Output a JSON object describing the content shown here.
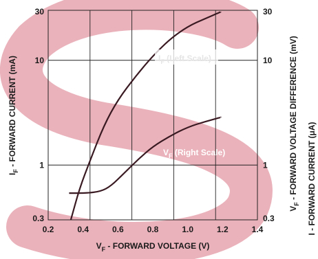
{
  "watermark": {
    "color": "#e8aab4",
    "glyph": "S"
  },
  "chart_data": {
    "type": "line",
    "title": "",
    "x_axis": {
      "label_main": "V",
      "label_sub": "F",
      "label_rest": " - FORWARD VOLTAGE (V)",
      "min": 0.2,
      "max": 1.4,
      "ticks": [
        "0.2",
        "0.4",
        "0.6",
        "0.8",
        "1.0",
        "1.2",
        "1.4"
      ],
      "grid": true
    },
    "y_left": {
      "label_main": "I",
      "label_sub": "F",
      "label_rest": " - FORWARD CURRENT (mA)",
      "scale": "log",
      "min": 0.3,
      "max": 30,
      "ticks": [
        "0.3",
        "1",
        "10",
        "30"
      ]
    },
    "y_right": {
      "label_main": "V",
      "label_sub": "F",
      "label_rest": " - FORWARD VOLTAGE DIFFERENCE (mV)",
      "scale": "log",
      "min": 0.3,
      "max": 30,
      "ticks": [
        "0.3",
        "1",
        "10",
        "30"
      ]
    },
    "clipped_right_label": "I  - FORWARD CURRENT (μA)",
    "series": [
      {
        "name": "I",
        "name_sub": "F",
        "name_rest": " (Left Scale)",
        "color": "#3a1a22",
        "points": [
          [
            0.33,
            0.3
          ],
          [
            0.38,
            0.6
          ],
          [
            0.44,
            1.1
          ],
          [
            0.52,
            2.4
          ],
          [
            0.6,
            4.2
          ],
          [
            0.7,
            7
          ],
          [
            0.8,
            11
          ],
          [
            0.9,
            16
          ],
          [
            1.0,
            21
          ],
          [
            1.1,
            25
          ],
          [
            1.19,
            29
          ]
        ]
      },
      {
        "name": "V",
        "name_sub": "F",
        "name_rest": " (Right Scale)",
        "color": "#3a1a22",
        "points": [
          [
            0.32,
            0.54
          ],
          [
            0.42,
            0.54
          ],
          [
            0.5,
            0.56
          ],
          [
            0.56,
            0.63
          ],
          [
            0.64,
            0.85
          ],
          [
            0.72,
            1.15
          ],
          [
            0.8,
            1.5
          ],
          [
            0.9,
            1.9
          ],
          [
            1.0,
            2.3
          ],
          [
            1.1,
            2.6
          ],
          [
            1.19,
            2.85
          ]
        ]
      }
    ]
  }
}
